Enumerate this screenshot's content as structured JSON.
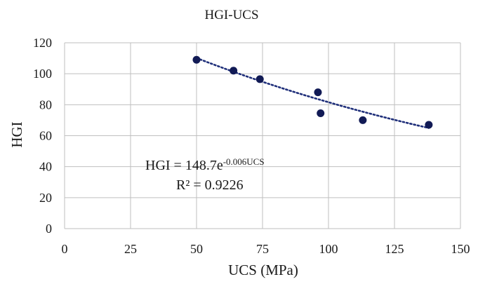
{
  "chart_data": {
    "type": "scatter",
    "title": "HGI-UCS",
    "xlabel": "UCS (MPa)",
    "ylabel": "HGI",
    "xlim": [
      0,
      150
    ],
    "ylim": [
      0,
      120
    ],
    "x_ticks": [
      0,
      25,
      50,
      75,
      100,
      125,
      150
    ],
    "y_ticks": [
      0,
      20,
      40,
      60,
      80,
      100,
      120
    ],
    "x_tick_labels": [
      "0",
      "25",
      "50",
      "75",
      "100",
      "125",
      "150"
    ],
    "y_tick_labels": [
      "0",
      "20",
      "40",
      "60",
      "80",
      "100",
      "120"
    ],
    "grid": true,
    "legend": "none",
    "marker_color": "#111a55",
    "trend_color": "#1f2f7a",
    "series": [
      {
        "x": [
          50,
          64,
          74,
          96,
          97,
          113,
          138
        ],
        "y": [
          109,
          102,
          96.5,
          88,
          74.5,
          70,
          67
        ]
      }
    ],
    "trendline": {
      "type": "exponential",
      "a": 148.7,
      "b": -0.006,
      "x_range": [
        50,
        138
      ],
      "style": "dotted"
    },
    "equation": {
      "prefix": "HGI = 148.7e",
      "exponent": "-0.006UCS",
      "r_squared": "R² = 0.9226"
    }
  }
}
